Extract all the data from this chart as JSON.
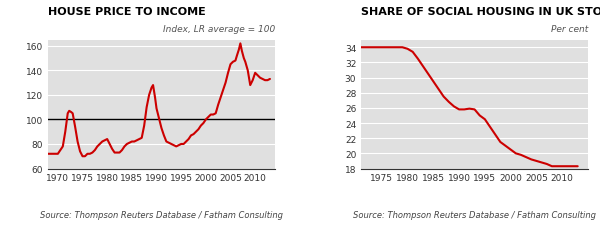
{
  "chart1": {
    "title": "HOUSE PRICE TO INCOME",
    "subtitle": "Index, LR average = 100",
    "source": "Source: Thompson Reuters Database / Fatham Consulting",
    "line_color": "#cc0000",
    "reference_line": 100,
    "ylim": [
      60,
      165
    ],
    "yticks": [
      60,
      80,
      100,
      120,
      140,
      160
    ],
    "xlim": [
      1968,
      2014
    ],
    "xticks": [
      1970,
      1975,
      1980,
      1985,
      1990,
      1995,
      2000,
      2005,
      2010
    ],
    "x": [
      1968.0,
      1968.5,
      1969.0,
      1969.5,
      1970.0,
      1970.5,
      1971.0,
      1971.5,
      1972.0,
      1972.3,
      1972.7,
      1973.0,
      1973.5,
      1974.0,
      1974.5,
      1975.0,
      1975.5,
      1976.0,
      1976.5,
      1977.0,
      1977.5,
      1978.0,
      1978.5,
      1979.0,
      1979.5,
      1980.0,
      1980.5,
      1981.0,
      1981.5,
      1982.0,
      1982.5,
      1983.0,
      1983.5,
      1984.0,
      1984.5,
      1985.0,
      1985.5,
      1986.0,
      1986.5,
      1987.0,
      1987.5,
      1988.0,
      1988.5,
      1989.0,
      1989.3,
      1989.7,
      1990.0,
      1990.5,
      1991.0,
      1991.5,
      1992.0,
      1992.5,
      1993.0,
      1993.5,
      1994.0,
      1994.5,
      1995.0,
      1995.5,
      1996.0,
      1996.5,
      1997.0,
      1997.5,
      1998.0,
      1998.5,
      1999.0,
      1999.5,
      2000.0,
      2000.5,
      2001.0,
      2001.5,
      2002.0,
      2002.5,
      2003.0,
      2003.5,
      2004.0,
      2004.5,
      2005.0,
      2005.5,
      2006.0,
      2006.3,
      2006.7,
      2007.0,
      2007.3,
      2007.7,
      2008.0,
      2008.5,
      2009.0,
      2009.5,
      2010.0,
      2010.5,
      2011.0,
      2011.5,
      2012.0,
      2012.5,
      2013.0
    ],
    "y": [
      72,
      72,
      72,
      72,
      72,
      75,
      78,
      90,
      105,
      107,
      106,
      105,
      94,
      82,
      74,
      70,
      70,
      72,
      72,
      73,
      75,
      78,
      80,
      82,
      83,
      84,
      80,
      76,
      73,
      73,
      73,
      75,
      78,
      80,
      81,
      82,
      82,
      83,
      84,
      85,
      95,
      110,
      120,
      126,
      128,
      118,
      109,
      101,
      93,
      87,
      82,
      81,
      80,
      79,
      78,
      79,
      80,
      80,
      82,
      84,
      87,
      88,
      90,
      92,
      95,
      97,
      100,
      102,
      104,
      104,
      105,
      112,
      118,
      124,
      130,
      138,
      145,
      147,
      148,
      152,
      157,
      162,
      156,
      150,
      147,
      140,
      128,
      132,
      138,
      136,
      134,
      133,
      132,
      132,
      133
    ]
  },
  "chart2": {
    "title": "SHARE OF SOCIAL HOUSING IN UK STOCK",
    "subtitle": "Per cent",
    "source": "Source: Thompson Reuters Database / Fatham Consulting",
    "line_color": "#cc0000",
    "ylim": [
      18,
      35
    ],
    "yticks": [
      18,
      20,
      22,
      24,
      26,
      28,
      30,
      32,
      34
    ],
    "xlim": [
      1971,
      2015
    ],
    "xticks": [
      1975,
      1980,
      1985,
      1990,
      1995,
      2000,
      2005,
      2010
    ],
    "x": [
      1971,
      1972,
      1973,
      1974,
      1975,
      1976,
      1977,
      1978,
      1979,
      1980,
      1981,
      1982,
      1983,
      1984,
      1985,
      1986,
      1987,
      1988,
      1989,
      1990,
      1991,
      1992,
      1993,
      1994,
      1995,
      1996,
      1997,
      1998,
      1999,
      2000,
      2001,
      2002,
      2003,
      2004,
      2005,
      2006,
      2007,
      2008,
      2009,
      2010,
      2011,
      2012,
      2013
    ],
    "y": [
      34.0,
      34.0,
      34.0,
      34.0,
      34.0,
      34.0,
      34.0,
      34.0,
      34.0,
      33.8,
      33.4,
      32.5,
      31.5,
      30.5,
      29.5,
      28.5,
      27.5,
      26.8,
      26.2,
      25.8,
      25.8,
      25.9,
      25.8,
      25.0,
      24.5,
      23.5,
      22.5,
      21.5,
      21.0,
      20.5,
      20.0,
      19.8,
      19.5,
      19.2,
      19.0,
      18.8,
      18.6,
      18.3,
      18.3,
      18.3,
      18.3,
      18.3,
      18.3
    ]
  },
  "fig_bg_color": "#ffffff",
  "plot_bg_color": "#e0e0e0",
  "grid_color": "#ffffff",
  "title_fontsize": 8,
  "subtitle_fontsize": 6.5,
  "source_fontsize": 6,
  "tick_fontsize": 6.5,
  "line_width": 1.5
}
